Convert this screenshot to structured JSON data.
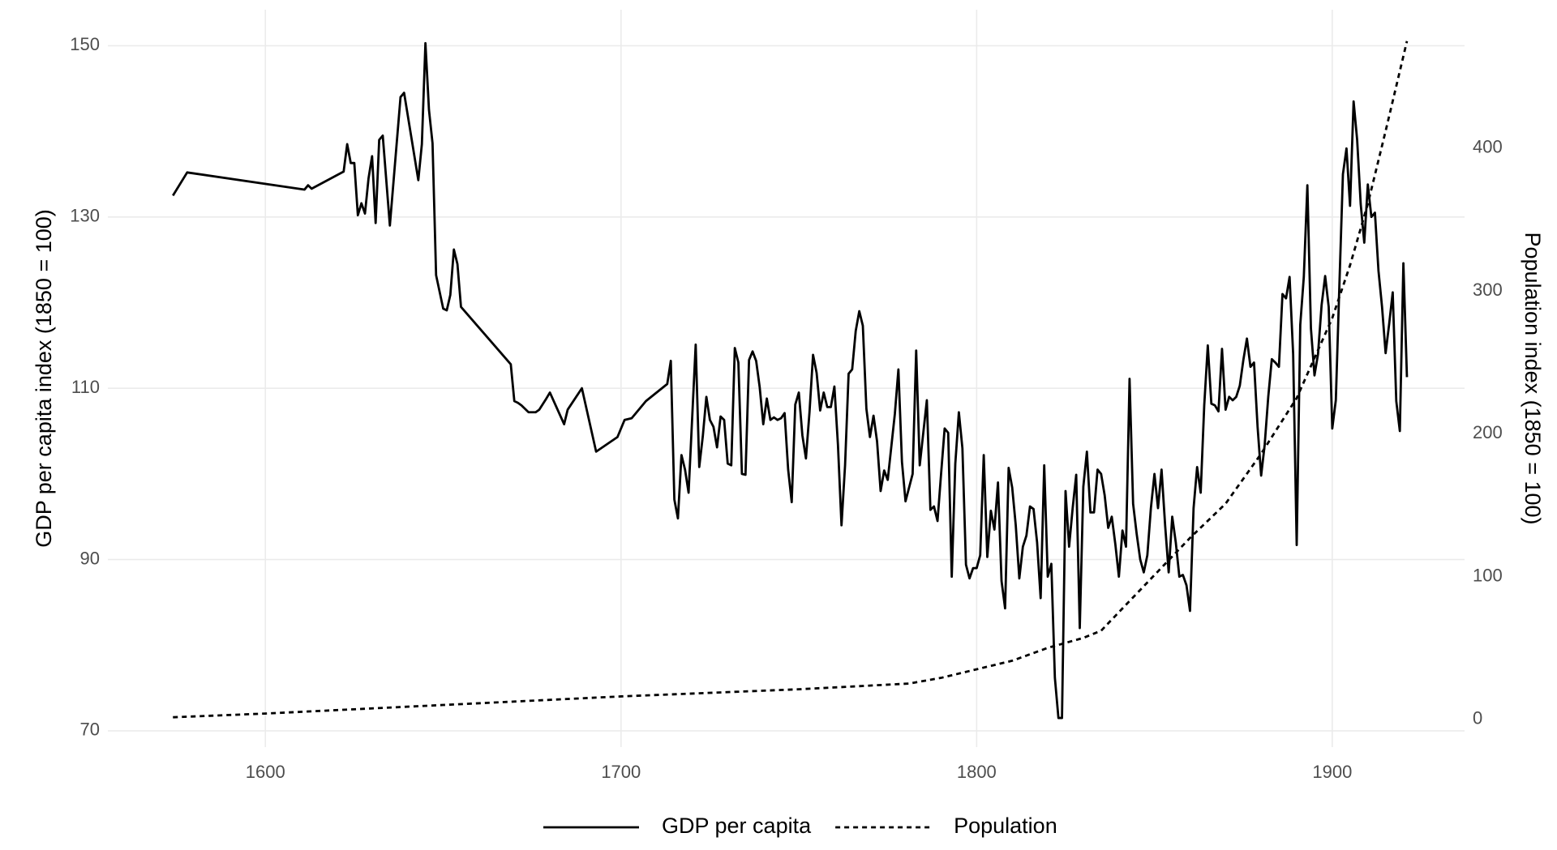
{
  "chart_data": {
    "type": "line",
    "y_label": "GDP per capita index (1850 = 100)",
    "y2_label": "Population index (1850 = 100)",
    "xlim": [
      1555.7,
      1937.2
    ],
    "xticks": [
      1600,
      1700,
      1800,
      1900
    ],
    "ylim": [
      68.1,
      154.2
    ],
    "yticks": [
      70,
      90,
      110,
      130,
      150
    ],
    "y2lim": [
      -19.5,
      497
    ],
    "y2ticks": [
      0,
      100,
      200,
      300,
      400
    ],
    "grid": true,
    "legend": "bottom",
    "series": [
      {
        "name": "GDP per capita",
        "color": "#000000",
        "linestyle": "solid",
        "x": [
          1574,
          1578,
          1611,
          1612,
          1613,
          1622,
          1623,
          1624,
          1625,
          1626,
          1627,
          1628,
          1629,
          1630,
          1631,
          1632,
          1633,
          1635,
          1638,
          1639,
          1643,
          1644,
          1645,
          1646,
          1647,
          1648,
          1650,
          1651,
          1652,
          1653,
          1654,
          1655,
          1669,
          1670,
          1671,
          1672,
          1674,
          1676,
          1677,
          1679,
          1680,
          1684,
          1685,
          1689,
          1693,
          1699,
          1701,
          1703,
          1707,
          1713,
          1714,
          1715,
          1716,
          1717,
          1718,
          1719,
          1721,
          1722,
          1723,
          1724,
          1725,
          1726,
          1727,
          1728,
          1729,
          1730,
          1731,
          1732,
          1733,
          1734,
          1735,
          1736,
          1737,
          1738,
          1739,
          1740,
          1741,
          1742,
          1743,
          1744,
          1745,
          1746,
          1747,
          1748,
          1749,
          1750,
          1751,
          1752,
          1753,
          1754,
          1755,
          1756,
          1757,
          1758,
          1759,
          1760,
          1761,
          1762,
          1763,
          1764,
          1765,
          1766,
          1767,
          1768,
          1769,
          1770,
          1771,
          1772,
          1773,
          1774,
          1775,
          1777,
          1778,
          1779,
          1780,
          1782,
          1783,
          1784,
          1785,
          1786,
          1787,
          1788,
          1789,
          1790,
          1791,
          1792,
          1793,
          1794,
          1795,
          1796,
          1797,
          1798,
          1799,
          1800,
          1801,
          1802,
          1803,
          1804,
          1805,
          1806,
          1807,
          1808,
          1809,
          1810,
          1811,
          1812,
          1813,
          1814,
          1815,
          1816,
          1817,
          1818,
          1819,
          1820,
          1821,
          1822,
          1823,
          1824,
          1825,
          1826,
          1827,
          1828,
          1829,
          1830,
          1831,
          1832,
          1833,
          1834,
          1835,
          1836,
          1837,
          1838,
          1839,
          1840,
          1841,
          1842,
          1843,
          1844,
          1845,
          1846,
          1847,
          1848,
          1849,
          1850,
          1851,
          1852,
          1853,
          1854,
          1855,
          1856,
          1857,
          1858,
          1859,
          1860,
          1861,
          1862,
          1863,
          1864,
          1865,
          1866,
          1867,
          1868,
          1869,
          1870,
          1871,
          1872,
          1873,
          1874,
          1875,
          1876,
          1877,
          1878,
          1879,
          1880,
          1881,
          1882,
          1883,
          1884,
          1885,
          1886,
          1887,
          1888,
          1889,
          1890,
          1891,
          1892,
          1893,
          1894,
          1895,
          1896,
          1897,
          1898,
          1899,
          1900,
          1901,
          1902,
          1903,
          1904,
          1905,
          1906,
          1907,
          1908,
          1909,
          1910,
          1911,
          1912,
          1913,
          1914,
          1915,
          1916,
          1917,
          1918,
          1919,
          1920,
          1921
        ],
        "values": [
          132.5,
          135.2,
          133.2,
          133.7,
          133.3,
          135.3,
          138.5,
          136.3,
          136.3,
          130.2,
          131.6,
          130.4,
          134.5,
          137.1,
          129.3,
          139.0,
          139.5,
          129.0,
          144.0,
          144.5,
          134.3,
          138.5,
          150.3,
          142.5,
          138.6,
          123.2,
          119.3,
          119.1,
          120.9,
          126.2,
          124.5,
          119.5,
          112.8,
          108.5,
          108.3,
          108.0,
          107.2,
          107.2,
          107.5,
          108.8,
          109.5,
          105.8,
          107.5,
          110.0,
          102.6,
          104.3,
          106.3,
          106.5,
          108.5,
          110.5,
          113.2,
          97.0,
          94.8,
          102.2,
          100.5,
          97.8,
          115.1,
          100.8,
          104.4,
          109.0,
          106.3,
          105.5,
          103.1,
          106.7,
          106.3,
          101.2,
          101.0,
          114.7,
          113.0,
          100.0,
          99.9,
          113.3,
          114.3,
          113.2,
          110.1,
          105.8,
          108.8,
          106.3,
          106.6,
          106.3,
          106.5,
          107.1,
          100.5,
          96.7,
          108.1,
          109.5,
          104.5,
          101.8,
          107.2,
          113.9,
          111.8,
          107.4,
          109.5,
          107.8,
          107.8,
          110.2,
          103.4,
          94.0,
          101.0,
          111.7,
          112.2,
          116.7,
          119.0,
          117.3,
          107.6,
          104.3,
          106.8,
          103.8,
          98.0,
          100.4,
          99.3,
          107.0,
          112.2,
          101.4,
          96.8,
          100.0,
          114.4,
          101.0,
          104.8,
          108.6,
          95.8,
          96.2,
          94.5,
          100.0,
          105.3,
          104.8,
          88.0,
          101.2,
          107.2,
          103.0,
          89.4,
          87.8,
          89.0,
          89.0,
          90.5,
          102.2,
          90.3,
          95.7,
          93.5,
          99.0,
          87.5,
          84.3,
          100.7,
          98.4,
          94.0,
          87.8,
          91.5,
          92.8,
          96.2,
          95.9,
          92.0,
          85.5,
          101.0,
          88.0,
          89.5,
          76.2,
          71.5,
          71.5,
          98.0,
          91.5,
          96.0,
          99.9,
          82.0,
          98.5,
          102.6,
          95.5,
          95.5,
          100.5,
          100.0,
          97.5,
          93.7,
          95.0,
          91.8,
          88.0,
          93.4,
          91.5,
          111.1,
          96.5,
          93.0,
          90.0,
          88.5,
          90.5,
          96.0,
          100.0,
          96.0,
          100.5,
          94.0,
          88.5,
          95.0,
          92.0,
          88.0,
          88.2,
          87.0,
          84.0,
          96.0,
          100.8,
          97.8,
          108.0,
          115.0,
          108.2,
          108.0,
          107.3,
          114.6,
          107.5,
          109.0,
          108.6,
          109.0,
          110.3,
          113.3,
          115.8,
          112.5,
          113.0,
          105.5,
          99.8,
          103.4,
          109.0,
          113.4,
          113.0,
          112.5,
          121.0,
          120.5,
          123.0,
          114.0,
          91.7,
          117.4,
          123.0,
          133.7,
          117.0,
          111.5,
          114.0,
          119.7,
          123.1,
          119.5,
          105.3,
          108.6,
          122.0,
          135.0,
          138.0,
          131.3,
          143.5,
          139.0,
          131.5,
          127.0,
          133.8,
          130.0,
          130.5,
          123.7,
          119.5,
          114.1,
          117.5,
          121.2,
          108.5,
          105.0,
          124.6,
          111.3
        ]
      },
      {
        "name": "Population",
        "color": "#000000",
        "linestyle": "dashed",
        "axis": "y2",
        "x": [
          1574,
          1600,
          1650,
          1700,
          1750,
          1781,
          1790,
          1800,
          1810,
          1820,
          1830,
          1835,
          1840,
          1850,
          1860,
          1870,
          1880,
          1890,
          1900,
          1905,
          1910,
          1915,
          1921
        ],
        "values": [
          1.4,
          4,
          10,
          16,
          21,
          25,
          29,
          35,
          41,
          50,
          57,
          62,
          75,
          101,
          127,
          151,
          186,
          225,
          281,
          318,
          361,
          412,
          475
        ]
      }
    ]
  }
}
